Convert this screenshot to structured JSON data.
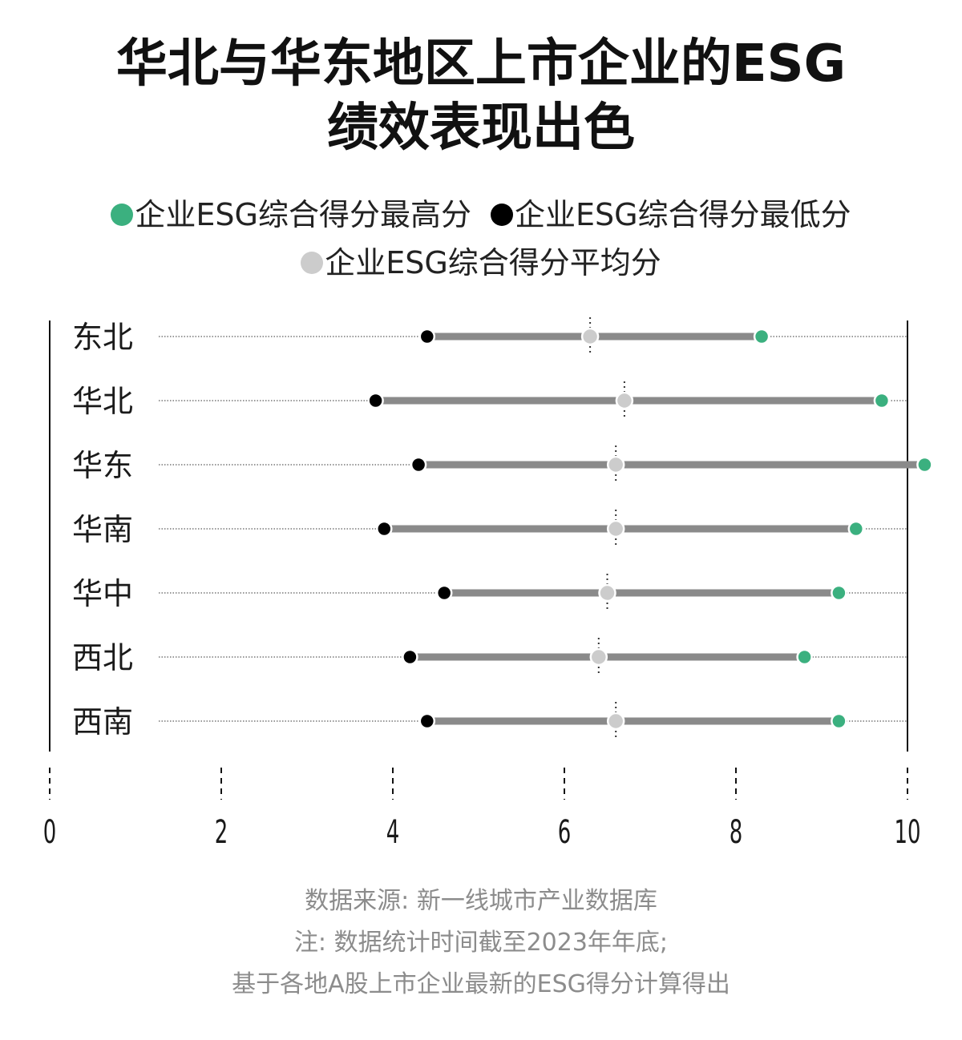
{
  "title": {
    "line1": "华北与华东地区上市企业的ESG",
    "line2": "绩效表现出色"
  },
  "legend": [
    {
      "label": "企业ESG综合得分最高分",
      "color": "#3bb07f"
    },
    {
      "label": "企业ESG综合得分最低分",
      "color": "#000000"
    },
    {
      "label": "企业ESG综合得分平均分",
      "color": "#cccccc"
    }
  ],
  "chart_data": {
    "type": "dumbbell",
    "xlim": [
      0,
      10
    ],
    "xticks": [
      "0",
      "2",
      "4",
      "6",
      "8",
      "10"
    ],
    "categories": [
      "东北",
      "华北",
      "华东",
      "华南",
      "华中",
      "西北",
      "西南"
    ],
    "series": [
      {
        "name": "企业ESG综合得分最低分",
        "color": "#000000",
        "values": [
          4.4,
          3.8,
          4.3,
          3.9,
          4.6,
          4.2,
          4.4
        ]
      },
      {
        "name": "企业ESG综合得分平均分",
        "color": "#cccccc",
        "values": [
          6.3,
          6.7,
          6.6,
          6.6,
          6.5,
          6.4,
          6.6
        ]
      },
      {
        "name": "企业ESG综合得分最高分",
        "color": "#3bb07f",
        "values": [
          8.3,
          9.7,
          10.2,
          9.4,
          9.2,
          8.8,
          9.2
        ]
      }
    ]
  },
  "notes": {
    "source": "数据来源: 新一线城市产业数据库",
    "note1": "注: 数据统计时间截至2023年年底;",
    "note2": "基于各地A股上市企业最新的ESG得分计算得出"
  }
}
